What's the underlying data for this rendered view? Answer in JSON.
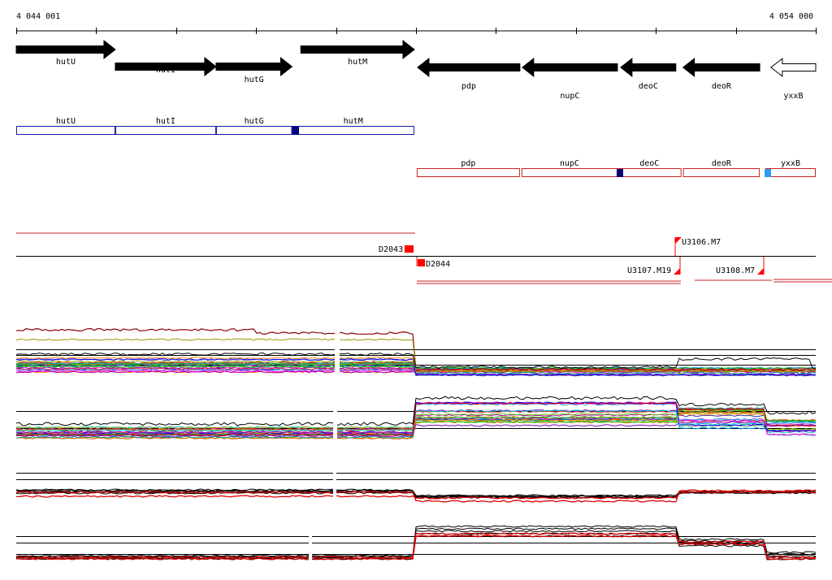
{
  "ruler": {
    "start_label": "4 044 001",
    "end_label": "4 054 000",
    "start": 4044001,
    "end": 4054000
  },
  "genes": [
    {
      "name": "hutU",
      "strand": "+",
      "from": 4044001,
      "to": 4045240,
      "row": 0,
      "filled": true
    },
    {
      "name": "hutI",
      "strand": "+",
      "from": 4045240,
      "to": 4046500,
      "row": 1,
      "filled": true
    },
    {
      "name": "hutG",
      "strand": "+",
      "from": 4046500,
      "to": 4047450,
      "row": 2,
      "filled": true
    },
    {
      "name": "hutM",
      "strand": "+",
      "from": 4047560,
      "to": 4048980,
      "row": 0,
      "filled": true
    },
    {
      "name": "pdp",
      "strand": "-",
      "from": 4049020,
      "to": 4050300,
      "row": 1,
      "filled": true
    },
    {
      "name": "nupC",
      "strand": "-",
      "from": 4050330,
      "to": 4051520,
      "row": 2,
      "filled": true
    },
    {
      "name": "deoC",
      "strand": "-",
      "from": 4051560,
      "to": 4052250,
      "row": 1,
      "filled": true
    },
    {
      "name": "deoR",
      "strand": "-",
      "from": 4052340,
      "to": 4053300,
      "row": 1,
      "filled": true
    },
    {
      "name": "yxxB",
      "strand": "-",
      "from": 4053440,
      "to": 4054000,
      "row": 2,
      "filled": false
    }
  ],
  "transcripts_plus": [
    {
      "name": "hutU",
      "from": 4044001,
      "to": 4045240
    },
    {
      "name": "hutI",
      "from": 4045240,
      "to": 4046500
    },
    {
      "name": "hutG",
      "from": 4046500,
      "to": 4047450
    },
    {
      "name": "hutM",
      "from": 4047450,
      "to": 4048980
    }
  ],
  "transcripts_minus": [
    {
      "name": "pdp",
      "from": 4049010,
      "to": 4050300
    },
    {
      "name": "nupC",
      "from": 4050320,
      "to": 4051520
    },
    {
      "name": "deoC",
      "from": 4051520,
      "to": 4052320
    },
    {
      "name": "deoR",
      "from": 4052340,
      "to": 4053300
    },
    {
      "name": "yxxB",
      "from": 4053370,
      "to": 4054000
    }
  ],
  "markers": [
    {
      "label": "D2043"
    },
    {
      "label": "D2044"
    },
    {
      "label": "U3106.M7"
    },
    {
      "label": "U3107.M19"
    },
    {
      "label": "U3108.M7"
    }
  ],
  "colors": {
    "gene": "#000000",
    "plus_box": "#1a1aa8",
    "minus_box": "#cc2222",
    "marker": "#ff0000",
    "dark_blue": "#00007a",
    "light_blue": "#2a9df4"
  }
}
